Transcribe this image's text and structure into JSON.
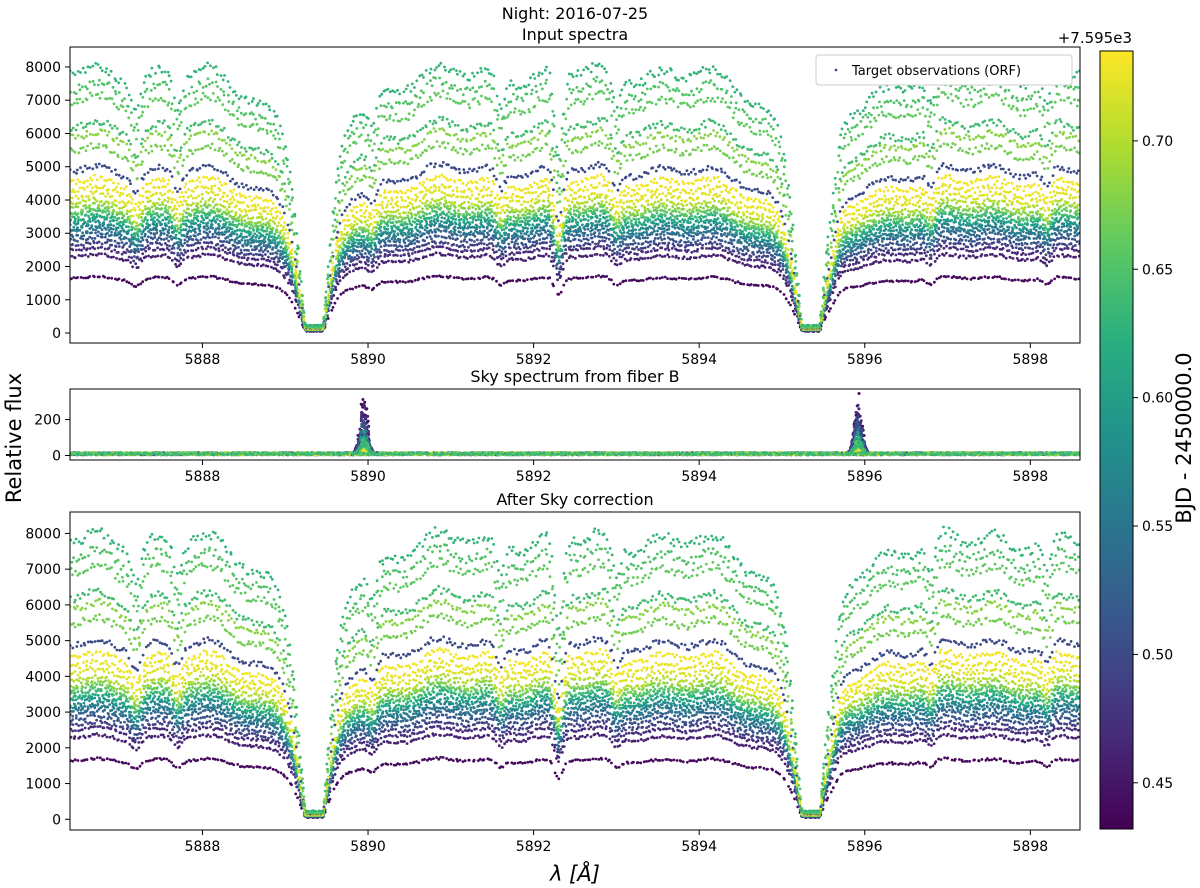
{
  "figure": {
    "suptitle": "Night: 2016-07-25",
    "ylabel": "Relative flux",
    "xlabel": "λ [Å]"
  },
  "colorbar": {
    "label": "BJD - 2450000.0",
    "offset_text": "+7.595e3",
    "ticks": [
      "0.45",
      "0.50",
      "0.55",
      "0.60",
      "0.65",
      "0.70"
    ],
    "tick_values": [
      0.45,
      0.5,
      0.55,
      0.6,
      0.65,
      0.7
    ],
    "range": [
      0.432,
      0.735
    ],
    "colormap": "viridis"
  },
  "chart_data": [
    {
      "type": "scatter",
      "title": "Input spectra",
      "legend": {
        "label": "Target observations (ORF)",
        "position": "top-right"
      },
      "xlim": [
        5886.4,
        5898.6
      ],
      "ylim": [
        -300,
        8600
      ],
      "xticks": [
        5888,
        5890,
        5892,
        5894,
        5896,
        5898
      ],
      "xtick_labels": [
        "5888",
        "5890",
        "5892",
        "5894",
        "5896",
        "5898"
      ],
      "yticks": [
        0,
        1000,
        2000,
        3000,
        4000,
        5000,
        6000,
        7000,
        8000
      ],
      "ytick_labels": [
        "0",
        "1000",
        "2000",
        "3000",
        "4000",
        "5000",
        "6000",
        "7000",
        "8000"
      ],
      "absorption_lines": [
        5889.95,
        5895.92
      ],
      "line_cores": [
        5889.35,
        5895.35
      ],
      "series_levels": [
        1650,
        2300,
        2500,
        2650,
        2800,
        2950,
        3050,
        3150,
        3250,
        3350,
        3450,
        3550,
        3650,
        3750,
        3900,
        4100,
        4300,
        4550,
        4900,
        5500,
        5900,
        6200,
        6950,
        7350,
        7800
      ],
      "series_times": [
        0.44,
        0.46,
        0.47,
        0.49,
        0.51,
        0.53,
        0.55,
        0.56,
        0.58,
        0.6,
        0.62,
        0.64,
        0.66,
        0.68,
        0.7,
        0.72,
        0.725,
        0.73,
        0.5,
        0.67,
        0.68,
        0.64,
        0.66,
        0.65,
        0.63
      ]
    },
    {
      "type": "scatter",
      "title": "Sky spectrum from fiber B",
      "xlim": [
        5886.4,
        5898.6
      ],
      "ylim": [
        -25,
        370
      ],
      "xticks": [
        5888,
        5890,
        5892,
        5894,
        5896,
        5898
      ],
      "xtick_labels": [
        "5888",
        "5890",
        "5892",
        "5894",
        "5896",
        "5898"
      ],
      "yticks": [
        0,
        200
      ],
      "ytick_labels": [
        "0",
        "200"
      ],
      "emission_lines": [
        5889.95,
        5895.92
      ],
      "peak_max": 340,
      "baseline": 10
    },
    {
      "type": "scatter",
      "title": "After Sky correction",
      "xlim": [
        5886.4,
        5898.6
      ],
      "ylim": [
        -300,
        8600
      ],
      "xticks": [
        5888,
        5890,
        5892,
        5894,
        5896,
        5898
      ],
      "xtick_labels": [
        "5888",
        "5890",
        "5892",
        "5894",
        "5896",
        "5898"
      ],
      "yticks": [
        0,
        1000,
        2000,
        3000,
        4000,
        5000,
        6000,
        7000,
        8000
      ],
      "ytick_labels": [
        "0",
        "1000",
        "2000",
        "3000",
        "4000",
        "5000",
        "6000",
        "7000",
        "8000"
      ],
      "absorption_lines": [
        5889.95,
        5895.92
      ],
      "line_cores": [
        5889.35,
        5895.35
      ],
      "series_levels": [
        1650,
        2300,
        2500,
        2650,
        2800,
        2950,
        3050,
        3150,
        3250,
        3350,
        3450,
        3550,
        3650,
        3750,
        3900,
        4100,
        4300,
        4550,
        4900,
        5500,
        5900,
        6200,
        6950,
        7350,
        7800
      ],
      "series_times": [
        0.44,
        0.46,
        0.47,
        0.49,
        0.51,
        0.53,
        0.55,
        0.56,
        0.58,
        0.6,
        0.62,
        0.64,
        0.66,
        0.68,
        0.7,
        0.72,
        0.725,
        0.73,
        0.5,
        0.67,
        0.68,
        0.64,
        0.66,
        0.65,
        0.63
      ]
    }
  ]
}
